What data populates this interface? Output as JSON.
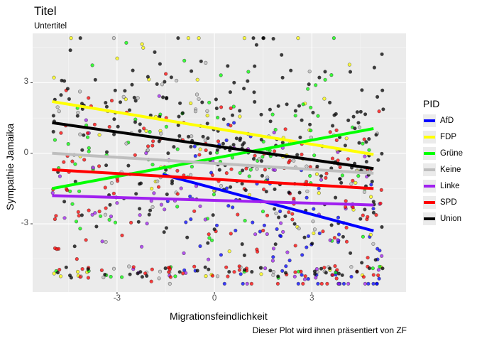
{
  "chart_data": {
    "type": "scatter",
    "title": "Titel",
    "subtitle": "Untertitel",
    "caption": "Dieser Plot wird ihnen präsentiert von ZF",
    "xlabel": "Migrationsfeindlichkeit",
    "ylabel": "Sympathie Jamaika",
    "xlim": [
      -5.6,
      5.9
    ],
    "ylim": [
      -5.9,
      5.1
    ],
    "xticks": [
      -3,
      0,
      3
    ],
    "yticks": [
      -3,
      0,
      3
    ],
    "grid": true,
    "legend": {
      "title": "PID",
      "position": "right"
    },
    "points_per_series": [
      80,
      60,
      100,
      80,
      70,
      170,
      280
    ],
    "series": [
      {
        "name": "AfD",
        "color": "#0000FF",
        "line": {
          "x": [
            -1.6,
            4.9
          ],
          "y": [
            -0.9,
            -3.3
          ]
        },
        "x_range": [
          -1.5,
          5.2
        ],
        "y_center": [
          -1.2,
          -4.2
        ]
      },
      {
        "name": "FDP",
        "color": "#FFFF00",
        "line": {
          "x": [
            -5.0,
            4.9
          ],
          "y": [
            2.2,
            -0.05
          ]
        },
        "x_range": [
          -5.0,
          5.2
        ],
        "y_center": [
          2.0,
          0.0
        ]
      },
      {
        "name": "Grüne",
        "color": "#00FF00",
        "line": {
          "x": [
            -5.0,
            4.9
          ],
          "y": [
            -1.5,
            1.05
          ]
        },
        "x_range": [
          -5.0,
          5.2
        ],
        "y_center": [
          -1.4,
          1.0
        ]
      },
      {
        "name": "Keine",
        "color": "#BEBEBE",
        "line": {
          "x": [
            -5.0,
            4.9
          ],
          "y": [
            0.0,
            -0.85
          ]
        },
        "x_range": [
          -5.0,
          5.2
        ],
        "y_center": [
          0.0,
          -0.8
        ]
      },
      {
        "name": "Linke",
        "color": "#A020F0",
        "line": {
          "x": [
            -5.0,
            4.9
          ],
          "y": [
            -1.8,
            -2.2
          ]
        },
        "x_range": [
          -5.0,
          5.2
        ],
        "y_center": [
          -1.8,
          -2.4
        ]
      },
      {
        "name": "SPD",
        "color": "#FF0000",
        "line": {
          "x": [
            -5.0,
            4.9
          ],
          "y": [
            -0.7,
            -1.5
          ]
        },
        "x_range": [
          -5.0,
          5.2
        ],
        "y_center": [
          -0.8,
          -1.6
        ]
      },
      {
        "name": "Union",
        "color": "#000000",
        "line": {
          "x": [
            -5.0,
            4.9
          ],
          "y": [
            1.3,
            -0.65
          ]
        },
        "x_range": [
          -5.0,
          5.2
        ],
        "y_center": [
          1.4,
          -0.8
        ]
      }
    ]
  }
}
